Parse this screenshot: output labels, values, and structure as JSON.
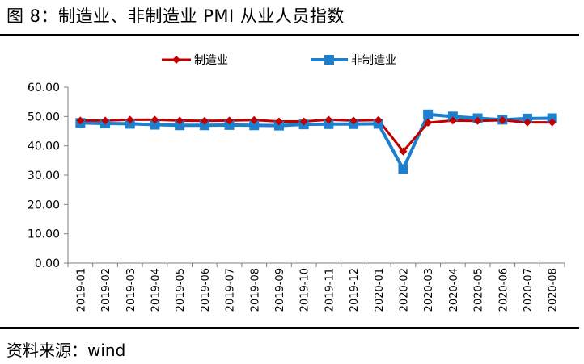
{
  "figure_title": "图 8：制造业、非制造业 PMI 从业人员指数",
  "source": "资料来源：wind",
  "chart_data": {
    "type": "line",
    "title": "",
    "xlabel": "",
    "ylabel": "",
    "categories": [
      "2019-01",
      "2019-02",
      "2019-03",
      "2019-04",
      "2019-05",
      "2019-06",
      "2019-07",
      "2019-08",
      "2019-09",
      "2019-10",
      "2019-11",
      "2019-12",
      "2020-01",
      "2020-02",
      "2020-03",
      "2020-04",
      "2020-05",
      "2020-06",
      "2020-07",
      "2020-08"
    ],
    "ylim": [
      0,
      60
    ],
    "yticks": [
      "0.00",
      "10.00",
      "20.00",
      "30.00",
      "40.00",
      "50.00",
      "60.00"
    ],
    "ytick_values": [
      0,
      10,
      20,
      30,
      40,
      50,
      60
    ],
    "grid": false,
    "legend_position": "top",
    "series": [
      {
        "name": "制造业",
        "color": "#c00000",
        "marker": "diamond",
        "values": [
          48.6,
          48.6,
          48.9,
          48.9,
          48.6,
          48.5,
          48.6,
          48.8,
          48.3,
          48.3,
          48.9,
          48.6,
          48.8,
          38.1,
          47.9,
          48.6,
          48.5,
          48.7,
          48.0,
          48.0
        ]
      },
      {
        "name": "非制造业",
        "color": "#1e7fce",
        "marker": "square",
        "values": [
          47.8,
          47.6,
          47.5,
          47.2,
          47.0,
          47.0,
          47.1,
          47.0,
          46.9,
          47.3,
          47.4,
          47.4,
          47.5,
          32.1,
          50.7,
          50.0,
          49.4,
          48.9,
          49.3,
          49.4
        ]
      }
    ]
  }
}
